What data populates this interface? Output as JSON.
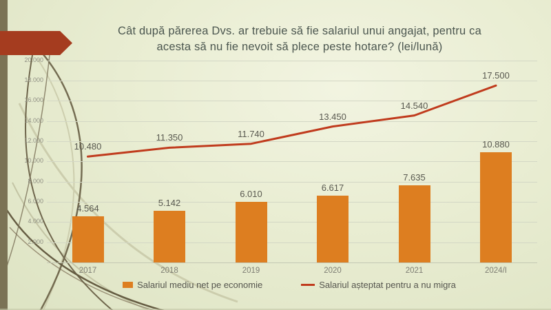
{
  "theme": {
    "background": "#e9edd2",
    "sidebar_color": "#7b7355",
    "arrow_color": "#a53c1f",
    "grid_color": "#d3d7c5",
    "axis_color": "#c4c8b4",
    "title_color": "#4b564f",
    "data_label_color": "#58584f",
    "tick_label_color": "#8f8f83",
    "legend_text_color": "#55554e"
  },
  "slide": {
    "title_line1": "Cât după părerea Dvs. ar trebuie să fie salariul unui angajat, pentru ca",
    "title_line2": "acesta să nu fie nevoit să plece peste hotare? (lei/lună)"
  },
  "chart_data": {
    "type": "combo",
    "title": "Cât după părerea Dvs. ar trebuie să fie salariul unui angajat, pentru ca acesta să nu fie nevoit să plece peste hotare? (lei/lună)",
    "categories": [
      "2017",
      "2018",
      "2019",
      "2020",
      "2021",
      "2024/I"
    ],
    "series": [
      {
        "name": "Salariul mediu net pe economie",
        "chart_type": "bar",
        "color": "#dd7e20",
        "values": [
          4564,
          5142,
          6010,
          6617,
          7635,
          10880
        ],
        "value_labels": [
          "4.564",
          "5.142",
          "6.010",
          "6.617",
          "7.635",
          "10.880"
        ]
      },
      {
        "name": "Salariul așteptat pentru a nu migra",
        "chart_type": "line",
        "color": "#c03b1d",
        "values": [
          10480,
          11350,
          11740,
          13450,
          14540,
          17500
        ],
        "value_labels": [
          "10.480",
          "11.350",
          "11.740",
          "13.450",
          "14.540",
          "17.500"
        ]
      }
    ],
    "xlabel": "",
    "ylabel": "",
    "ylim": [
      0,
      20000
    ],
    "yticks": [
      {
        "value": 2000,
        "label": "2.000"
      },
      {
        "value": 4000,
        "label": "4.000"
      },
      {
        "value": 6000,
        "label": "6.000"
      },
      {
        "value": 8000,
        "label": "8.000"
      },
      {
        "value": 10000,
        "label": "10.000"
      },
      {
        "value": 12000,
        "label": "12.000"
      },
      {
        "value": 14000,
        "label": "14.000"
      },
      {
        "value": 16000,
        "label": "16.000"
      },
      {
        "value": 18000,
        "label": "18.000"
      },
      {
        "value": 20000,
        "label": "20.000"
      }
    ],
    "grid": true,
    "legend_position": "bottom"
  }
}
